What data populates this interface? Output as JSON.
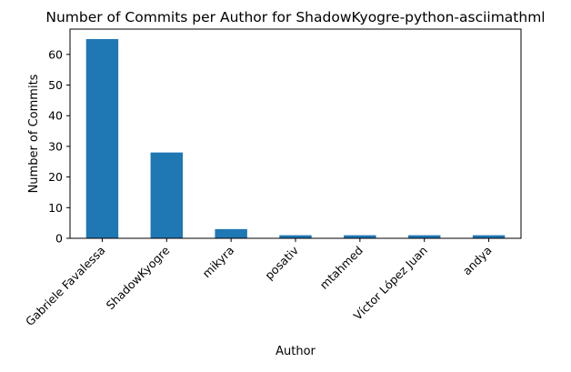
{
  "chart_data": {
    "type": "bar",
    "title": "Number of Commits per Author for ShadowKyogre-python-asciimathml",
    "xlabel": "Author",
    "ylabel": "Number of Commits",
    "categories": [
      "Gabriele Favalessa",
      "ShadowKyogre",
      "mikyra",
      "posativ",
      "mtahmed",
      "Víctor López Juan",
      "andya"
    ],
    "values": [
      65,
      28,
      3,
      1,
      1,
      1,
      1
    ],
    "ylim": [
      0,
      68.25
    ],
    "yticks": [
      0,
      10,
      20,
      30,
      40,
      50,
      60
    ],
    "grid": false,
    "legend": "none",
    "bar_color": "#1f77b4"
  }
}
